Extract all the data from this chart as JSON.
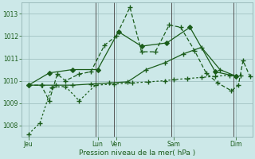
{
  "background_color": "#cce8e8",
  "grid_color": "#99bbbb",
  "line_color": "#1a5c1a",
  "xlabel": "Pression niveau de la mer( hPa )",
  "ylim": [
    1007.5,
    1013.5
  ],
  "yticks": [
    1008,
    1009,
    1010,
    1011,
    1012,
    1013
  ],
  "xlim": [
    0,
    10
  ],
  "xtick_positions": [
    0.3,
    3.3,
    4.1,
    6.6,
    9.3
  ],
  "xtick_labels": [
    "Jeu",
    "Lun",
    "Ven",
    "Sam",
    "Dim"
  ],
  "vlines": [
    3.2,
    4.0,
    6.5,
    9.2
  ],
  "series": [
    {
      "x": [
        0.3,
        0.8,
        1.3,
        1.9,
        2.5,
        3.2,
        4.0,
        4.8,
        5.5,
        6.2,
        6.6,
        7.2,
        7.8,
        8.4,
        9.0,
        9.5
      ],
      "y": [
        1007.6,
        1008.1,
        1009.7,
        1009.75,
        1009.1,
        1009.8,
        1009.85,
        1009.9,
        1009.95,
        1010.0,
        1010.05,
        1010.1,
        1010.15,
        1010.2,
        1010.25,
        1010.25
      ],
      "linestyle": "dotted",
      "marker": "+"
    },
    {
      "x": [
        0.3,
        0.9,
        1.5,
        2.2,
        3.0,
        3.8,
        4.6,
        5.4,
        6.2,
        7.0,
        7.8,
        8.6,
        9.3
      ],
      "y": [
        1009.8,
        1009.8,
        1009.8,
        1009.8,
        1009.85,
        1009.9,
        1009.95,
        1010.5,
        1010.8,
        1011.2,
        1011.5,
        1010.5,
        1010.2
      ],
      "linestyle": "solid",
      "marker": "+"
    },
    {
      "x": [
        0.3,
        0.85,
        1.2,
        1.55,
        1.9,
        2.5,
        3.0,
        3.6,
        4.1,
        4.7,
        5.2,
        5.8,
        6.4,
        6.9,
        7.5,
        8.0,
        8.5,
        9.1,
        9.4,
        9.6,
        9.9
      ],
      "y": [
        1009.8,
        1009.8,
        1009.1,
        1010.3,
        1010.0,
        1010.3,
        1010.4,
        1011.6,
        1012.0,
        1013.3,
        1011.3,
        1011.3,
        1012.5,
        1012.4,
        1011.35,
        1010.35,
        1009.9,
        1009.55,
        1009.8,
        1010.9,
        1010.2
      ],
      "linestyle": "dashed",
      "marker": "+"
    },
    {
      "x": [
        0.3,
        1.2,
        2.2,
        3.3,
        4.2,
        5.2,
        6.3,
        7.3,
        8.4,
        9.3
      ],
      "y": [
        1009.8,
        1010.35,
        1010.5,
        1010.5,
        1012.2,
        1011.55,
        1011.7,
        1012.4,
        1010.4,
        1010.2
      ],
      "linestyle": "solid",
      "marker": "D"
    }
  ]
}
